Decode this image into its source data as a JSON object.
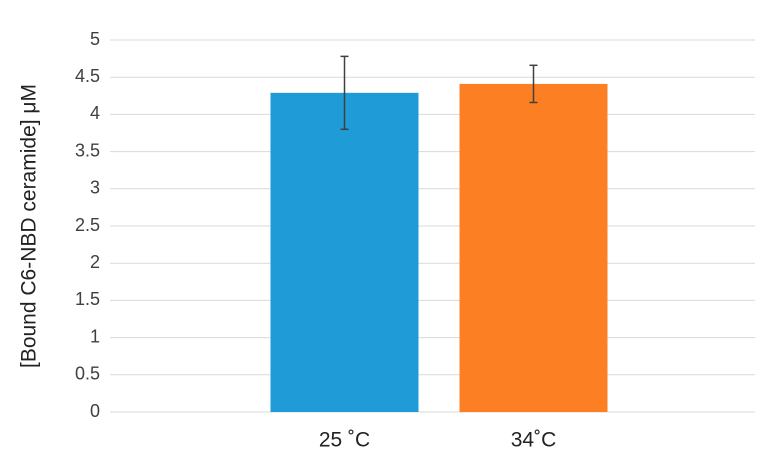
{
  "chart_data": {
    "type": "bar",
    "y_label": "[Bound C6-NBD ceramide] μM",
    "categories": [
      "25 ˚C",
      "34˚C"
    ],
    "values": [
      4.29,
      4.41
    ],
    "errors": [
      0.49,
      0.25
    ],
    "colors": [
      "#1f9bd8",
      "#fd7f24"
    ],
    "error_color": "#404040",
    "ylim": [
      0,
      5
    ],
    "yticks": [
      0,
      0.5,
      1,
      1.5,
      2,
      2.5,
      3,
      3.5,
      4,
      4.5,
      5
    ],
    "grid": true
  }
}
